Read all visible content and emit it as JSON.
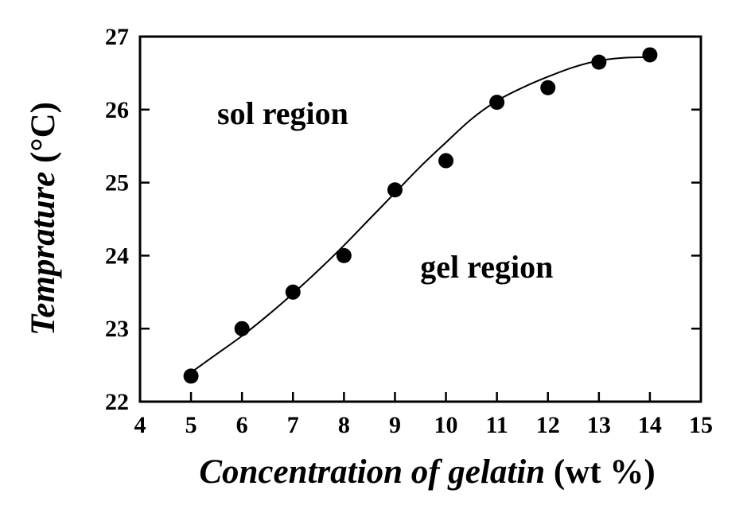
{
  "chart_data": {
    "type": "scatter",
    "title": "",
    "xlabel_italic": "Concentration of gelatin",
    "xlabel_unit": "(wt %)",
    "ylabel_italic": "Temprature",
    "ylabel_unit": "(°C)",
    "xlim": [
      4,
      15
    ],
    "ylim": [
      22,
      27
    ],
    "xticks": [
      4,
      5,
      6,
      7,
      8,
      9,
      10,
      11,
      12,
      13,
      14,
      15
    ],
    "yticks": [
      22,
      23,
      24,
      25,
      26,
      27
    ],
    "grid": false,
    "legend": "none",
    "series": [
      {
        "x": [
          5,
          6,
          7,
          8,
          9,
          10,
          11,
          12,
          13,
          14
        ],
        "y": [
          22.35,
          23.0,
          23.5,
          24.0,
          24.9,
          25.3,
          26.1,
          26.3,
          26.65,
          26.75
        ],
        "marker": "filled-circle"
      }
    ],
    "fit_curve": {
      "style": "smooth-line",
      "x": [
        5,
        5.5,
        6,
        6.5,
        7,
        7.5,
        8,
        8.5,
        9,
        9.5,
        10,
        10.5,
        11,
        11.5,
        12,
        12.5,
        13,
        13.5,
        14
      ],
      "y": [
        22.4,
        22.65,
        22.9,
        23.18,
        23.48,
        23.8,
        24.14,
        24.5,
        24.86,
        25.22,
        25.55,
        25.87,
        26.12,
        26.3,
        26.45,
        26.58,
        26.67,
        26.71,
        26.72
      ]
    },
    "annotations": [
      {
        "text": "sol region",
        "x": 6.8,
        "y": 25.8
      },
      {
        "text": "gel region",
        "x": 10.8,
        "y": 23.7
      }
    ],
    "colors": {
      "ink": "#000000",
      "background": "#ffffff"
    }
  }
}
